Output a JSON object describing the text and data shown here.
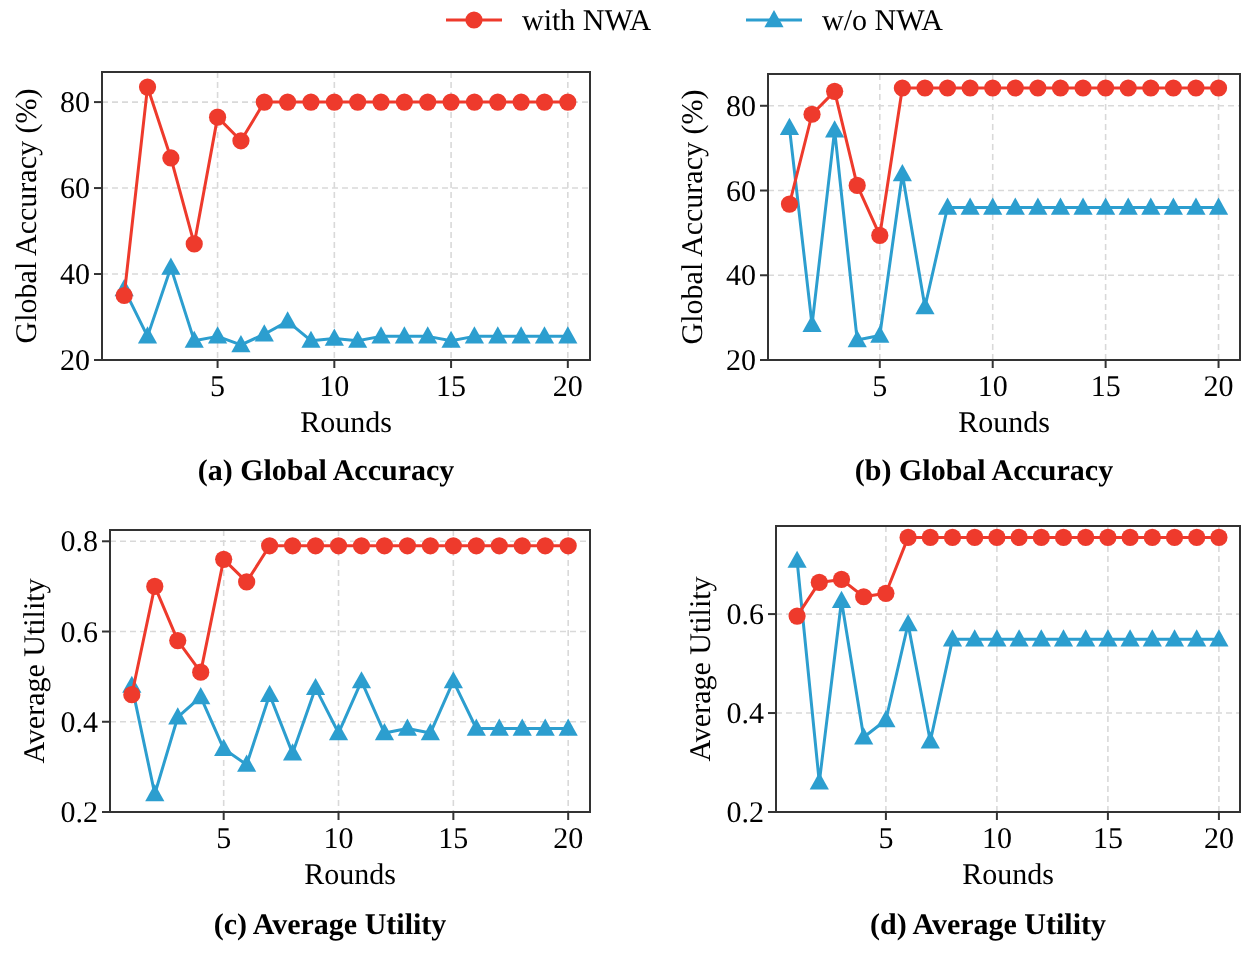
{
  "chart_data": [
    {
      "type": "line",
      "title": "(a) Global Accuracy",
      "xlabel": "Rounds",
      "ylabel": "Global Accuracy (%)",
      "x": [
        1,
        2,
        3,
        4,
        5,
        6,
        7,
        8,
        9,
        10,
        11,
        12,
        13,
        14,
        15,
        16,
        17,
        18,
        19,
        20
      ],
      "xlim": [
        0.05,
        20.95
      ],
      "xticks": [
        5,
        10,
        15,
        20
      ],
      "ylim": [
        20,
        87
      ],
      "yticks": [
        20,
        40,
        60,
        80
      ],
      "grid": true,
      "legend": "top",
      "series": [
        {
          "name": "with NWA",
          "color": "#ee3a2c",
          "marker": "circle",
          "values": [
            35,
            83.5,
            67,
            47,
            76.5,
            71,
            80,
            80,
            80,
            80,
            80,
            80,
            80,
            80,
            80,
            80,
            80,
            80,
            80,
            80
          ]
        },
        {
          "name": "w/o NWA",
          "color": "#2c9ecf",
          "marker": "triangle",
          "values": [
            36.5,
            25.5,
            41.5,
            24.5,
            25.5,
            23.5,
            26,
            29,
            24.5,
            25,
            24.5,
            25.5,
            25.5,
            25.5,
            24.5,
            25.5,
            25.5,
            25.5,
            25.5,
            25.5
          ]
        }
      ]
    },
    {
      "type": "line",
      "title": "(b) Global Accuracy",
      "xlabel": "Rounds",
      "ylabel": "Global Accuracy (%)",
      "x": [
        1,
        2,
        3,
        4,
        5,
        6,
        7,
        8,
        9,
        10,
        11,
        12,
        13,
        14,
        15,
        16,
        17,
        18,
        19,
        20
      ],
      "xlim": [
        0.05,
        20.95
      ],
      "xticks": [
        5,
        10,
        15,
        20
      ],
      "ylim": [
        20,
        87.5
      ],
      "yticks": [
        20,
        40,
        60,
        80
      ],
      "grid": true,
      "series": [
        {
          "color": "#ee3a2c",
          "marker": "circle",
          "values": [
            56.8,
            78,
            83.4,
            61.2,
            49.4,
            84.2,
            84.2,
            84.2,
            84.2,
            84.2,
            84.2,
            84.2,
            84.2,
            84.2,
            84.2,
            84.2,
            84.2,
            84.2,
            84.2,
            84.2
          ]
        },
        {
          "color": "#2c9ecf",
          "marker": "triangle",
          "values": [
            74.8,
            28.3,
            74.2,
            24.7,
            25.8,
            63.9,
            32.5,
            56,
            56,
            56,
            56,
            56,
            56,
            56,
            56,
            56,
            56,
            56,
            56,
            56
          ]
        }
      ]
    },
    {
      "type": "line",
      "title": "(c) Average Utility",
      "xlabel": "Rounds",
      "ylabel": "Average Utility",
      "x": [
        1,
        2,
        3,
        4,
        5,
        6,
        7,
        8,
        9,
        10,
        11,
        12,
        13,
        14,
        15,
        16,
        17,
        18,
        19,
        20
      ],
      "xlim": [
        0.05,
        20.95
      ],
      "xticks": [
        5,
        10,
        15,
        20
      ],
      "ylim": [
        0.2,
        0.825
      ],
      "yticks": [
        {
          "value": 0.2,
          "label": "0.2"
        },
        {
          "value": 0.4,
          "label": "0.4"
        },
        {
          "value": 0.6,
          "label": "0.6"
        },
        {
          "value": 0.8,
          "label": "0.8"
        }
      ],
      "grid": true,
      "series": [
        {
          "color": "#ee3a2c",
          "marker": "circle",
          "values": [
            0.46,
            0.7,
            0.58,
            0.51,
            0.76,
            0.71,
            0.79,
            0.79,
            0.79,
            0.79,
            0.79,
            0.79,
            0.79,
            0.79,
            0.79,
            0.79,
            0.79,
            0.79,
            0.79,
            0.79
          ]
        },
        {
          "color": "#2c9ecf",
          "marker": "triangle",
          "values": [
            0.48,
            0.24,
            0.41,
            0.455,
            0.34,
            0.305,
            0.46,
            0.33,
            0.475,
            0.375,
            0.49,
            0.375,
            0.385,
            0.375,
            0.49,
            0.385,
            0.385,
            0.385,
            0.385,
            0.385
          ]
        }
      ]
    },
    {
      "type": "line",
      "title": "(d) Average Utility",
      "xlabel": "Rounds",
      "ylabel": "Average Utility",
      "x": [
        1,
        2,
        3,
        4,
        5,
        6,
        7,
        8,
        9,
        10,
        11,
        12,
        13,
        14,
        15,
        16,
        17,
        18,
        19,
        20
      ],
      "xlim": [
        0.05,
        20.95
      ],
      "xticks": [
        5,
        10,
        15,
        20
      ],
      "ylim": [
        0.2,
        0.778
      ],
      "yticks": [
        {
          "value": 0.2,
          "label": "0.2"
        },
        {
          "value": 0.4,
          "label": "0.4"
        },
        {
          "value": 0.6,
          "label": "0.6"
        }
      ],
      "grid": true,
      "series": [
        {
          "color": "#ee3a2c",
          "marker": "circle",
          "values": [
            0.596,
            0.664,
            0.67,
            0.635,
            0.642,
            0.755,
            0.755,
            0.755,
            0.755,
            0.755,
            0.755,
            0.755,
            0.755,
            0.755,
            0.755,
            0.755,
            0.755,
            0.755,
            0.755,
            0.755
          ]
        },
        {
          "color": "#2c9ecf",
          "marker": "triangle",
          "values": [
            0.708,
            0.26,
            0.627,
            0.351,
            0.386,
            0.58,
            0.343,
            0.549,
            0.549,
            0.549,
            0.549,
            0.549,
            0.549,
            0.549,
            0.549,
            0.549,
            0.549,
            0.549,
            0.549,
            0.549
          ]
        }
      ]
    }
  ]
}
